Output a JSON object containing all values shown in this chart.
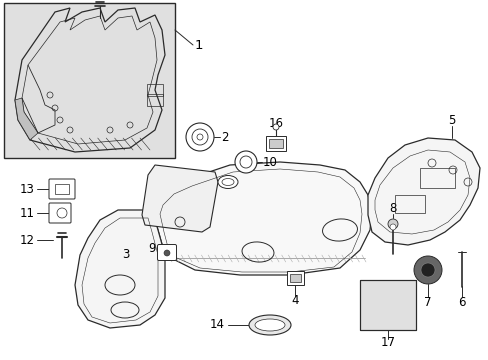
{
  "bg_color": "#ffffff",
  "line_color": "#2a2a2a",
  "inset_bg": "#e8e8e8",
  "font_size": 8.5
}
